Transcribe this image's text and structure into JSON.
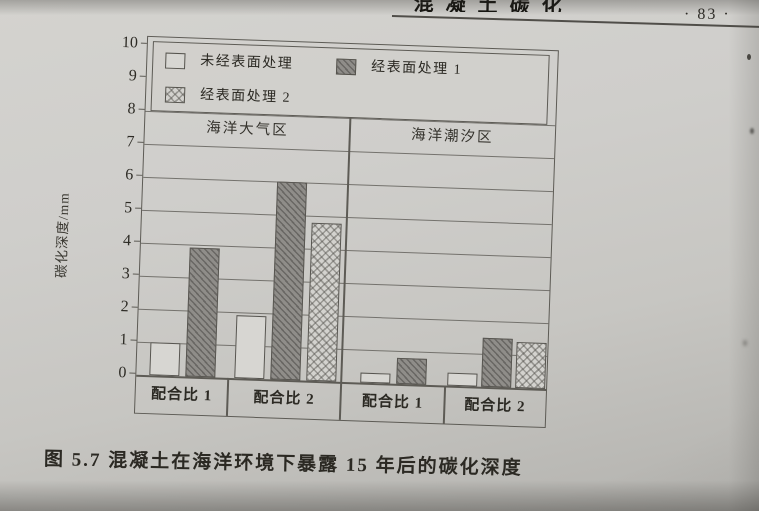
{
  "page": {
    "header_fragment": "混凝土碳化",
    "page_number": "· 83 ·",
    "caption": "图 5.7  混凝土在海洋环境下暴露 15 年后的碳化深度"
  },
  "chart_data": {
    "type": "bar",
    "title": "混凝土在海洋环境下暴露 15 年后的碳化深度",
    "ylabel": "碳化深度/mm",
    "units": "mm",
    "ylim": [
      0,
      10
    ],
    "ytick_step": 1,
    "grid": true,
    "legend_position": "top-inside",
    "legend": [
      "未经表面处理",
      "经表面处理 1",
      "经表面处理 2"
    ],
    "series_colors": [
      "#d7d6d2",
      "#8f8d89",
      "#d3d2ce"
    ],
    "series_patterns": [
      "plain-outline",
      "dark-diagonal-hatch",
      "light-cross-hatch"
    ],
    "regions": [
      {
        "label": "海洋大气区",
        "groups": [
          {
            "label": "配合比 1",
            "values": [
              1.0,
              3.9,
              null
            ]
          },
          {
            "label": "配合比 2",
            "values": [
              1.9,
              6.0,
              4.8
            ]
          }
        ]
      },
      {
        "label": "海洋潮汐区",
        "groups": [
          {
            "label": "配合比 1",
            "values": [
              0.3,
              0.8,
              null
            ]
          },
          {
            "label": "配合比 2",
            "values": [
              0.4,
              1.5,
              1.4
            ]
          }
        ]
      }
    ]
  }
}
